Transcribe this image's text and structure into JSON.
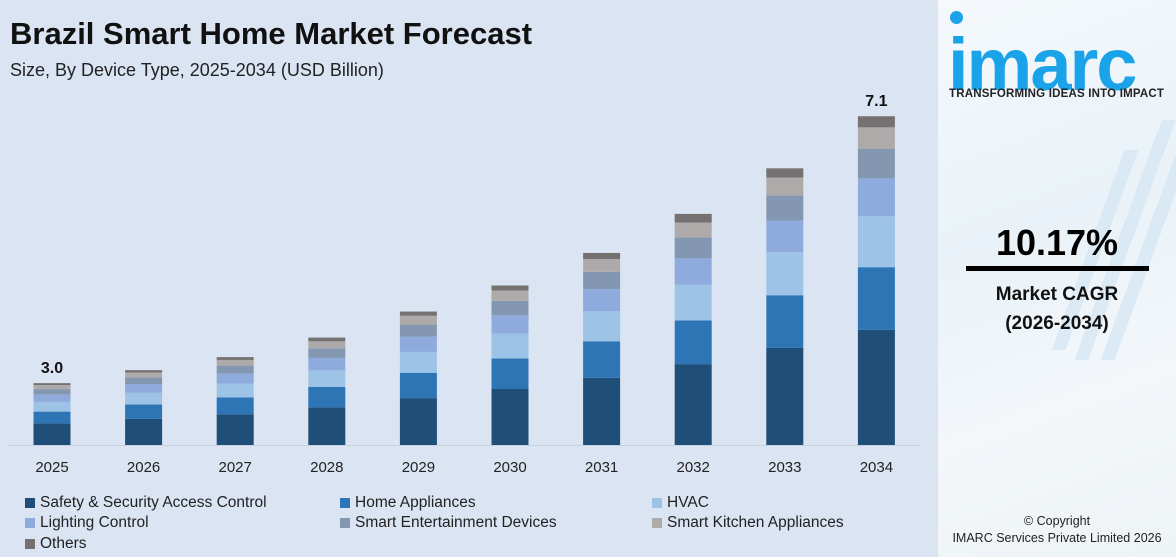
{
  "header": {
    "title": "Brazil Smart Home Market Forecast",
    "subtitle": "Size, By Device Type, 2025-2034 (USD Billion)"
  },
  "chart_data": {
    "type": "bar",
    "stacked": true,
    "title": "Brazil Smart Home Market Forecast",
    "subtitle": "Size, By Device Type, 2025-2034 (USD Billion)",
    "categories": [
      "2025",
      "2026",
      "2027",
      "2028",
      "2029",
      "2030",
      "2031",
      "2032",
      "2033",
      "2034"
    ],
    "totals": [
      3.0,
      3.2,
      3.4,
      3.7,
      4.1,
      4.5,
      5.0,
      5.6,
      6.3,
      7.1
    ],
    "total_labels": {
      "2025": "3.0",
      "2034": "7.1"
    },
    "series": [
      {
        "name": "Safety & Security Access Control",
        "color": "#1f4e79",
        "values": [
          1.05,
          1.12,
          1.19,
          1.3,
          1.44,
          1.58,
          1.75,
          1.96,
          2.21,
          2.49
        ]
      },
      {
        "name": "Home Appliances",
        "color": "#2e75b6",
        "values": [
          0.57,
          0.61,
          0.65,
          0.7,
          0.78,
          0.86,
          0.95,
          1.06,
          1.2,
          1.35
        ]
      },
      {
        "name": "HVAC",
        "color": "#9dc3e6",
        "values": [
          0.47,
          0.5,
          0.53,
          0.57,
          0.64,
          0.7,
          0.78,
          0.87,
          0.98,
          1.1
        ]
      },
      {
        "name": "Lighting Control",
        "color": "#8faadc",
        "values": [
          0.35,
          0.37,
          0.39,
          0.43,
          0.47,
          0.52,
          0.58,
          0.64,
          0.72,
          0.82
        ]
      },
      {
        "name": "Smart Entertainment Devices",
        "color": "#8497b0",
        "values": [
          0.27,
          0.29,
          0.31,
          0.33,
          0.37,
          0.41,
          0.45,
          0.5,
          0.57,
          0.64
        ]
      },
      {
        "name": "Smart Kitchen Appliances",
        "color": "#aeaaaa",
        "values": [
          0.2,
          0.21,
          0.22,
          0.24,
          0.27,
          0.29,
          0.33,
          0.36,
          0.41,
          0.46
        ]
      },
      {
        "name": "Others",
        "color": "#767171",
        "values": [
          0.09,
          0.1,
          0.11,
          0.13,
          0.13,
          0.14,
          0.16,
          0.21,
          0.21,
          0.24
        ]
      }
    ],
    "legend_placement": "bottom",
    "grid": false
  },
  "brand": {
    "logo": "imarc",
    "tagline": "TRANSFORMING IDEAS INTO IMPACT",
    "color": "#1aa3e8"
  },
  "cagr": {
    "value": "10.17%",
    "label": "Market CAGR",
    "period": "(2026-2034)"
  },
  "footer": {
    "copyright": "© Copyright",
    "company": "IMARC Services Private Limited 2026"
  }
}
